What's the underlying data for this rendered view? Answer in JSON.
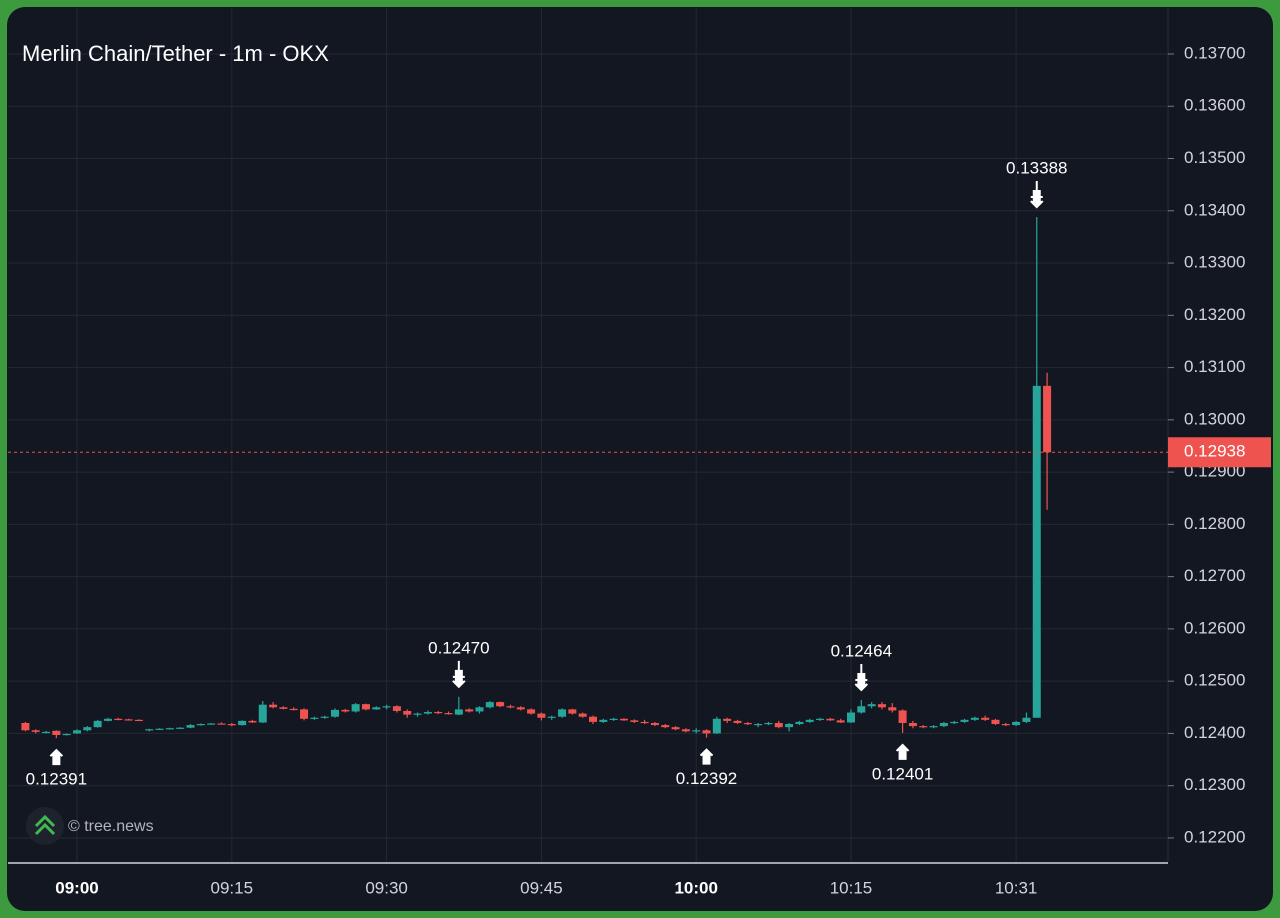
{
  "chart_data": {
    "type": "candlestick",
    "title": "Merlin Chain/Tether - 1m - OKX",
    "watermark": "© tree.news",
    "categories": [
      null,
      null,
      null,
      null,
      null,
      "09:00",
      null,
      null,
      null,
      null,
      null,
      null,
      null,
      null,
      null,
      null,
      null,
      null,
      null,
      null,
      "09:15",
      null,
      null,
      null,
      null,
      null,
      null,
      null,
      null,
      null,
      null,
      null,
      null,
      null,
      null,
      "09:30",
      null,
      null,
      null,
      null,
      null,
      null,
      null,
      null,
      null,
      null,
      null,
      null,
      null,
      null,
      "09:45",
      null,
      null,
      null,
      null,
      null,
      null,
      null,
      null,
      null,
      null,
      null,
      null,
      null,
      null,
      "10:00",
      null,
      null,
      null,
      null,
      null,
      null,
      null,
      null,
      null,
      null,
      null,
      null,
      null,
      null,
      "10:15",
      null,
      null,
      null,
      null,
      null,
      null,
      null,
      null,
      null,
      null,
      null,
      null,
      null,
      null,
      null,
      "10:31",
      null,
      null,
      null
    ],
    "open": [
      0.1242,
      0.12406,
      0.12403,
      0.12405,
      0.12397,
      0.124,
      0.12406,
      0.12412,
      0.12424,
      0.12428,
      0.12427,
      0.12426,
      0.12406,
      0.12408,
      0.12409,
      0.1241,
      0.12411,
      0.12416,
      0.12418,
      0.12419,
      0.12418,
      0.12416,
      0.12424,
      0.12421,
      0.12455,
      0.1245,
      0.12447,
      0.12446,
      0.12428,
      0.1243,
      0.12432,
      0.12445,
      0.12442,
      0.12456,
      0.12446,
      0.1245,
      0.12452,
      0.12443,
      0.12436,
      0.12438,
      0.12441,
      0.12439,
      0.12436,
      0.12446,
      0.12442,
      0.1245,
      0.1246,
      0.12452,
      0.1245,
      0.12446,
      0.12438,
      0.1243,
      0.12432,
      0.12446,
      0.12438,
      0.12432,
      0.12422,
      0.12426,
      0.12428,
      0.12425,
      0.12422,
      0.1242,
      0.12416,
      0.12412,
      0.12408,
      0.12404,
      0.12406,
      0.124,
      0.12428,
      0.12424,
      0.1242,
      0.12418,
      0.12418,
      0.1242,
      0.12412,
      0.12418,
      0.12422,
      0.12426,
      0.12428,
      0.12425,
      0.12421,
      0.1244,
      0.12452,
      0.12456,
      0.1245,
      0.12444,
      0.1242,
      0.12414,
      0.12412,
      0.12414,
      0.1242,
      0.12422,
      0.12426,
      0.1243,
      0.12426,
      0.12418,
      0.12416,
      0.12422,
      0.1243,
      0.13065
    ],
    "high": [
      0.12422,
      0.12408,
      0.12405,
      0.12406,
      0.124,
      0.12408,
      0.12414,
      0.12426,
      0.1243,
      0.1243,
      0.12428,
      0.12427,
      0.12409,
      0.1241,
      0.12411,
      0.12412,
      0.12418,
      0.12419,
      0.1242,
      0.12421,
      0.1242,
      0.12425,
      0.12426,
      0.12462,
      0.1246,
      0.12452,
      0.1245,
      0.12448,
      0.12432,
      0.12434,
      0.12448,
      0.12447,
      0.12458,
      0.12457,
      0.12452,
      0.12455,
      0.12454,
      0.12446,
      0.1244,
      0.12444,
      0.12443,
      0.12442,
      0.1247,
      0.12448,
      0.12452,
      0.12462,
      0.12461,
      0.12455,
      0.12452,
      0.12448,
      0.1244,
      0.12434,
      0.12448,
      0.12447,
      0.1244,
      0.12434,
      0.12428,
      0.1243,
      0.12429,
      0.12427,
      0.12426,
      0.12422,
      0.12418,
      0.12414,
      0.1241,
      0.1241,
      0.12408,
      0.12432,
      0.1243,
      0.12426,
      0.12422,
      0.1242,
      0.12422,
      0.12424,
      0.1242,
      0.12424,
      0.12428,
      0.1243,
      0.1243,
      0.12428,
      0.12446,
      0.12464,
      0.1246,
      0.1246,
      0.12458,
      0.12446,
      0.12424,
      0.12416,
      0.12416,
      0.12422,
      0.12424,
      0.12428,
      0.12432,
      0.12434,
      0.12428,
      0.1242,
      0.12424,
      0.1244,
      0.13388,
      0.1309
    ],
    "low": [
      0.12404,
      0.124,
      0.124,
      0.12391,
      0.12396,
      0.12399,
      0.12404,
      0.12411,
      0.12423,
      0.12425,
      0.12425,
      0.12424,
      0.12404,
      0.12407,
      0.12408,
      0.12409,
      0.1241,
      0.12415,
      0.12417,
      0.12417,
      0.12414,
      0.12415,
      0.1242,
      0.1242,
      0.12448,
      0.12446,
      0.12444,
      0.12425,
      0.12426,
      0.12428,
      0.1243,
      0.1244,
      0.1244,
      0.12444,
      0.12445,
      0.12446,
      0.1244,
      0.1243,
      0.12432,
      0.12436,
      0.12437,
      0.12436,
      0.12435,
      0.1244,
      0.12438,
      0.12448,
      0.1245,
      0.12448,
      0.12444,
      0.12436,
      0.12425,
      0.12426,
      0.1243,
      0.12436,
      0.1243,
      0.12418,
      0.1242,
      0.12424,
      0.12424,
      0.1242,
      0.12418,
      0.12414,
      0.1241,
      0.12406,
      0.12402,
      0.124,
      0.12392,
      0.12399,
      0.1242,
      0.12418,
      0.12416,
      0.12412,
      0.12416,
      0.1241,
      0.12404,
      0.12416,
      0.1242,
      0.12424,
      0.12424,
      0.1242,
      0.1242,
      0.12438,
      0.12448,
      0.12446,
      0.1244,
      0.12401,
      0.1241,
      0.1241,
      0.1241,
      0.12412,
      0.12418,
      0.1242,
      0.12424,
      0.12424,
      0.12416,
      0.12414,
      0.12414,
      0.1242,
      0.1243,
      0.12828
    ],
    "close": [
      0.12406,
      0.12403,
      0.12403,
      0.12397,
      0.12399,
      0.12406,
      0.12412,
      0.12424,
      0.12428,
      0.12427,
      0.12426,
      0.12425,
      0.12408,
      0.12409,
      0.1241,
      0.12411,
      0.12416,
      0.12418,
      0.12419,
      0.12418,
      0.12416,
      0.12424,
      0.12421,
      0.12455,
      0.1245,
      0.12447,
      0.12446,
      0.12428,
      0.1243,
      0.12432,
      0.12445,
      0.12442,
      0.12456,
      0.12446,
      0.1245,
      0.12452,
      0.12443,
      0.12436,
      0.12438,
      0.12441,
      0.12439,
      0.12438,
      0.12446,
      0.12442,
      0.1245,
      0.1246,
      0.12452,
      0.1245,
      0.12446,
      0.12438,
      0.1243,
      0.12432,
      0.12446,
      0.12438,
      0.12432,
      0.12422,
      0.12426,
      0.12428,
      0.12425,
      0.12422,
      0.1242,
      0.12416,
      0.12412,
      0.12408,
      0.12404,
      0.12406,
      0.124,
      0.12428,
      0.12424,
      0.1242,
      0.12418,
      0.12418,
      0.1242,
      0.12412,
      0.12418,
      0.12422,
      0.12426,
      0.12428,
      0.12425,
      0.12421,
      0.1244,
      0.12452,
      0.12456,
      0.1245,
      0.12444,
      0.1242,
      0.12414,
      0.12412,
      0.12414,
      0.1242,
      0.12422,
      0.12426,
      0.1243,
      0.12426,
      0.12418,
      0.12416,
      0.12422,
      0.1243,
      0.13065,
      0.12938
    ],
    "up_color": "#26a69a",
    "down_color": "#ef5350",
    "ylim": [
      0.12154,
      0.13788
    ],
    "yticks": [
      {
        "value": 0.122,
        "label": "0.12200"
      },
      {
        "value": 0.123,
        "label": "0.12300"
      },
      {
        "value": 0.124,
        "label": "0.12400"
      },
      {
        "value": 0.125,
        "label": "0.12500"
      },
      {
        "value": 0.126,
        "label": "0.12600"
      },
      {
        "value": 0.127,
        "label": "0.12700"
      },
      {
        "value": 0.128,
        "label": "0.12800"
      },
      {
        "value": 0.129,
        "label": "0.12900"
      },
      {
        "value": 0.13,
        "label": "0.13000"
      },
      {
        "value": 0.131,
        "label": "0.13100"
      },
      {
        "value": 0.132,
        "label": "0.13200"
      },
      {
        "value": 0.133,
        "label": "0.13300"
      },
      {
        "value": 0.134,
        "label": "0.13400"
      },
      {
        "value": 0.135,
        "label": "0.13500"
      },
      {
        "value": 0.136,
        "label": "0.13600"
      },
      {
        "value": 0.137,
        "label": "0.13700"
      }
    ],
    "grid": true,
    "last_price": 0.12938,
    "high_labels": [
      {
        "value": 0.1247,
        "label": "0.12470"
      },
      {
        "value": 0.12464,
        "label": "0.12464"
      },
      {
        "value": 0.13388,
        "label": "0.13388"
      }
    ],
    "low_labels": [
      {
        "value": 0.12391,
        "label": "0.12391"
      },
      {
        "value": 0.12392,
        "label": "0.12392"
      },
      {
        "value": 0.12401,
        "label": "0.12401"
      }
    ]
  }
}
